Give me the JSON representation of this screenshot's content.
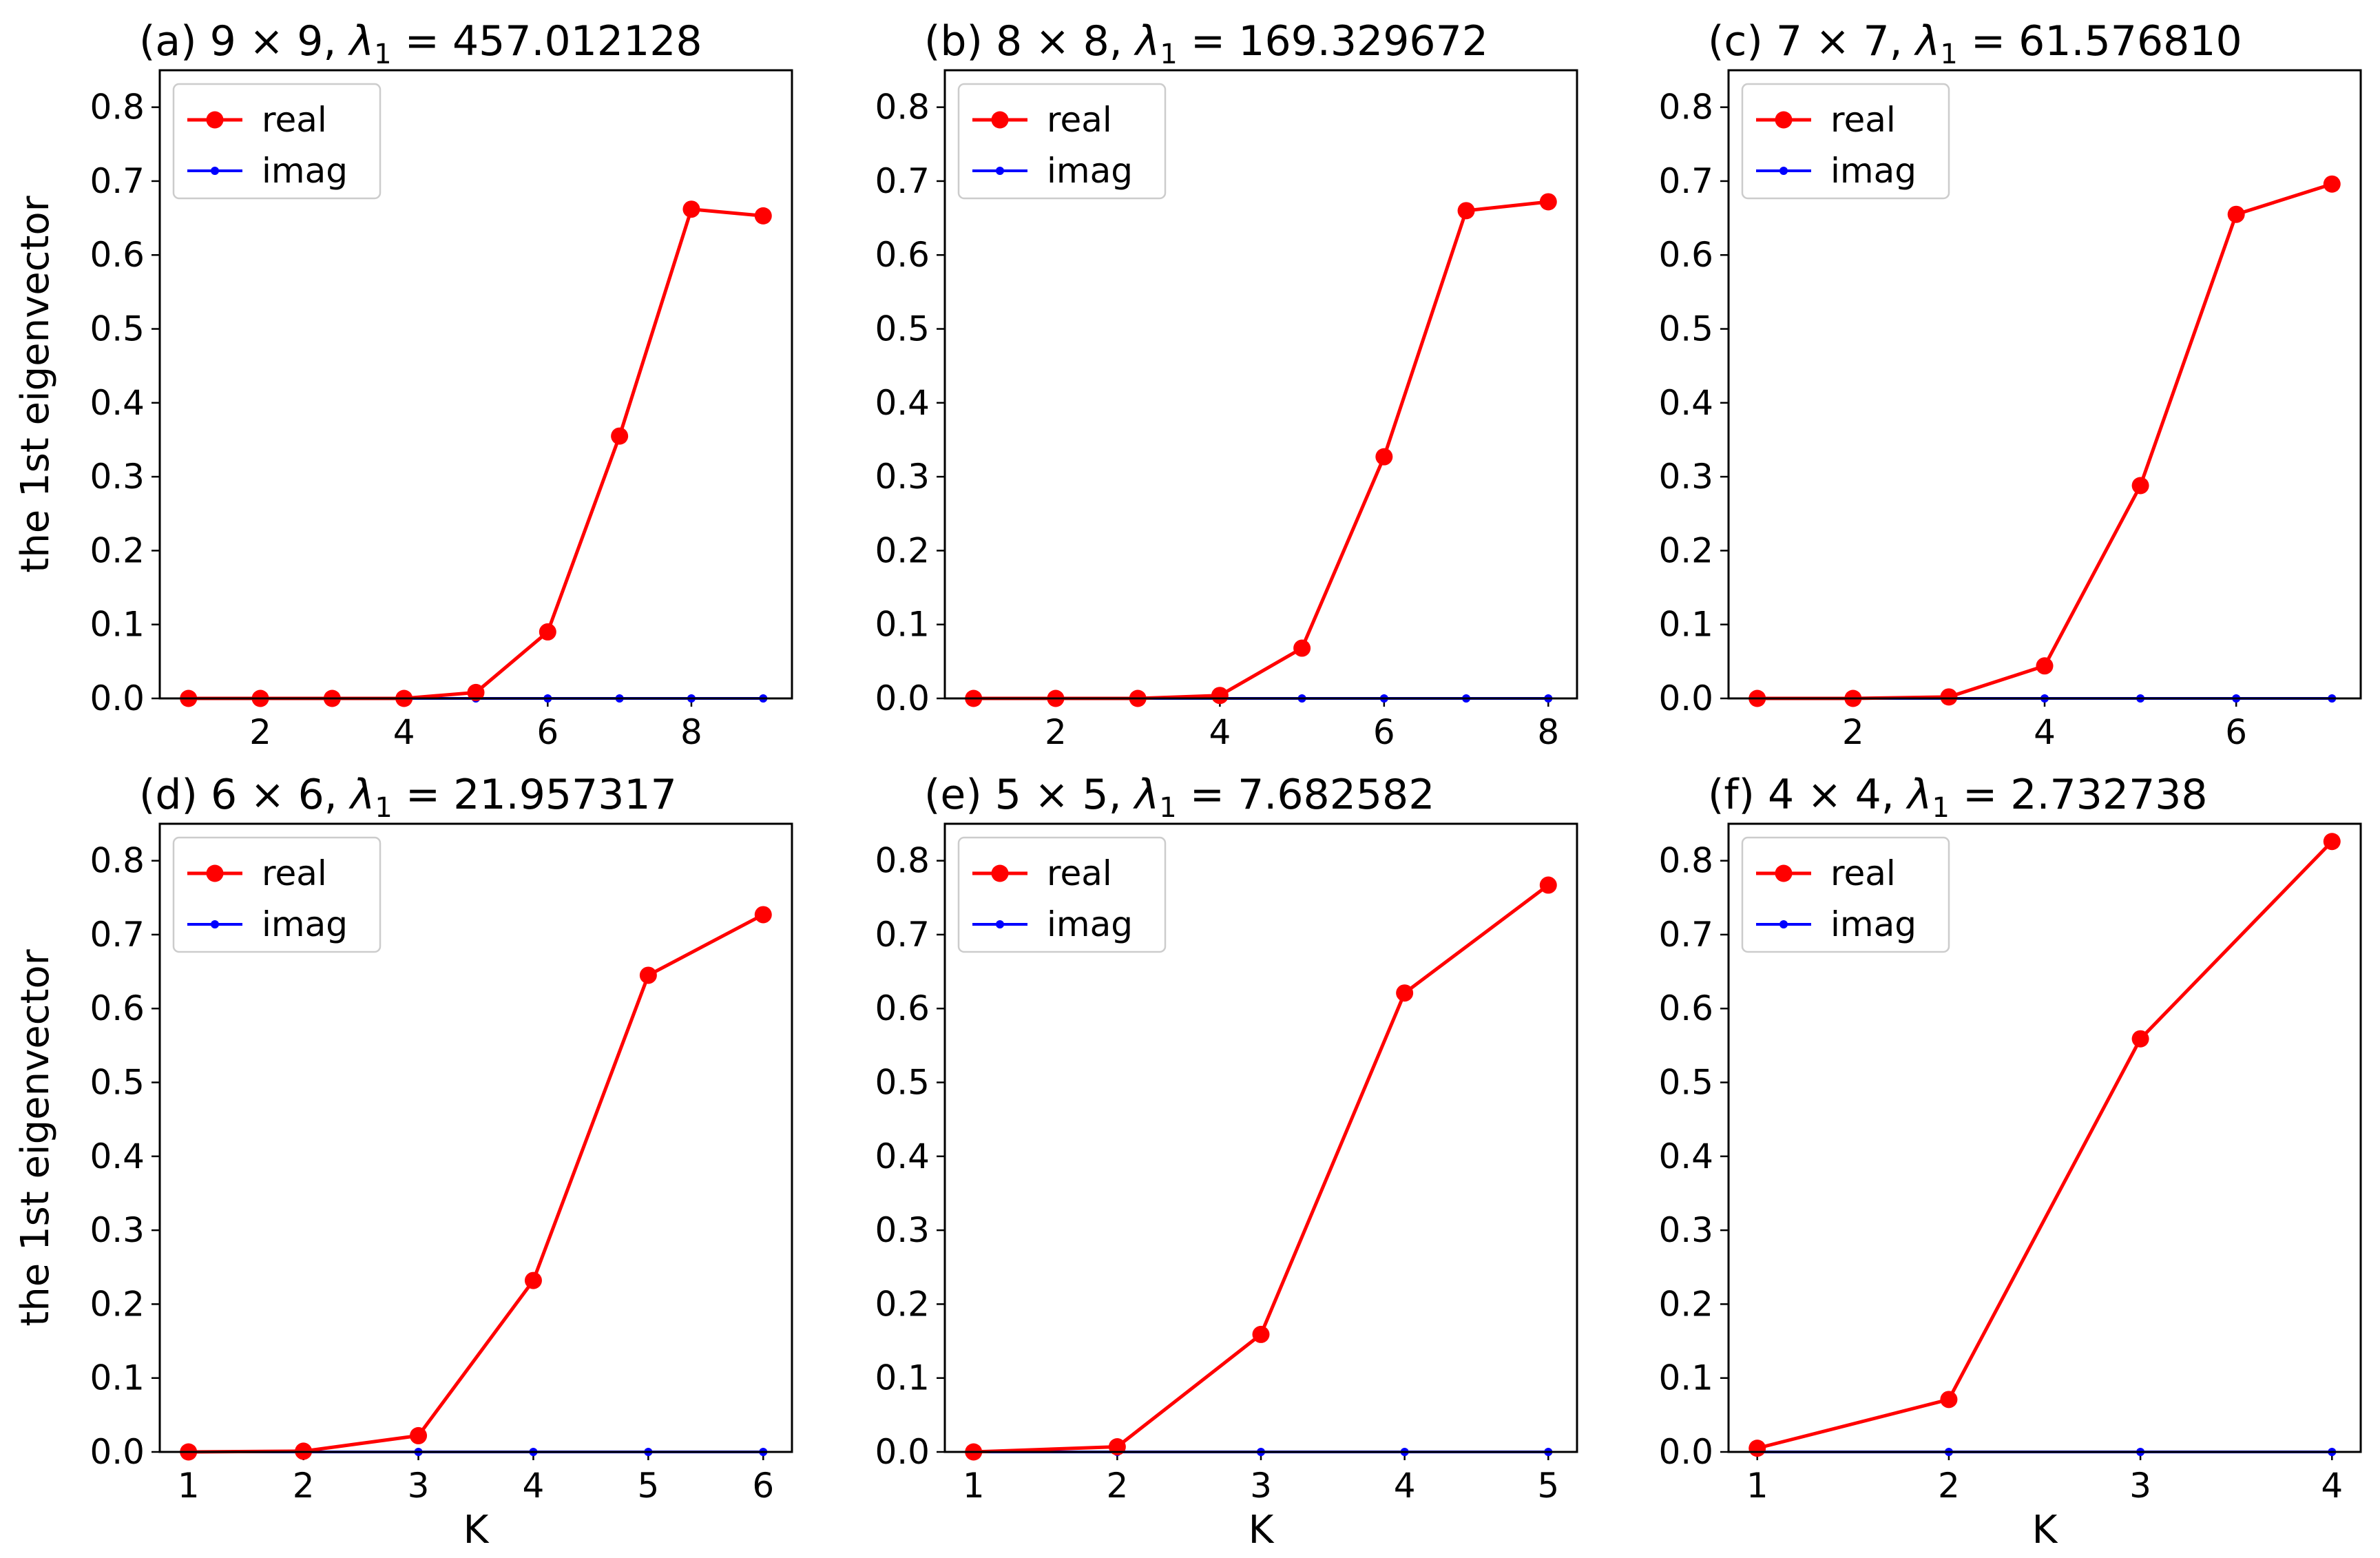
{
  "figure": {
    "ylabel": "the 1st eigenvector",
    "xlabel": "K"
  },
  "legend": {
    "entries": [
      {
        "label": "real",
        "color": "#ff0000",
        "marker": "large-dot"
      },
      {
        "label": "imag",
        "color": "#0000ff",
        "marker": "small-dot"
      }
    ],
    "placement": "upper-left"
  },
  "chart_data": [
    {
      "type": "line",
      "title_prefix": "(a) 9 × 9, ",
      "title_lambda": "λ",
      "title_sub": "1",
      "title_value": " = 457.012128",
      "x": [
        1,
        2,
        3,
        4,
        5,
        6,
        7,
        8,
        9
      ],
      "xticks": [
        2,
        4,
        6,
        8
      ],
      "xlim": [
        0.6,
        9.4
      ],
      "ylim": [
        0,
        0.85
      ],
      "yticks": [
        0.0,
        0.1,
        0.2,
        0.3,
        0.4,
        0.5,
        0.6,
        0.7,
        0.8
      ],
      "series": [
        {
          "name": "real",
          "values": [
            0.0,
            0.0,
            0.0,
            0.0,
            0.008,
            0.09,
            0.355,
            0.662,
            0.653
          ]
        },
        {
          "name": "imag",
          "values": [
            0,
            0,
            0,
            0,
            0,
            0,
            0,
            0,
            0
          ]
        }
      ],
      "show_ylabel": true,
      "show_xlabel": false
    },
    {
      "type": "line",
      "title_prefix": "(b) 8 × 8, ",
      "title_lambda": "λ",
      "title_sub": "1",
      "title_value": " = 169.329672",
      "x": [
        1,
        2,
        3,
        4,
        5,
        6,
        7,
        8
      ],
      "xticks": [
        2,
        4,
        6,
        8
      ],
      "xlim": [
        0.65,
        8.35
      ],
      "ylim": [
        0,
        0.85
      ],
      "yticks": [
        0.0,
        0.1,
        0.2,
        0.3,
        0.4,
        0.5,
        0.6,
        0.7,
        0.8
      ],
      "series": [
        {
          "name": "real",
          "values": [
            0.0,
            0.0,
            0.0,
            0.004,
            0.068,
            0.327,
            0.66,
            0.672
          ]
        },
        {
          "name": "imag",
          "values": [
            0,
            0,
            0,
            0,
            0,
            0,
            0,
            0
          ]
        }
      ],
      "show_ylabel": false,
      "show_xlabel": false
    },
    {
      "type": "line",
      "title_prefix": "(c) 7 × 7, ",
      "title_lambda": "λ",
      "title_sub": "1",
      "title_value": " = 61.576810",
      "x": [
        1,
        2,
        3,
        4,
        5,
        6,
        7
      ],
      "xticks": [
        2,
        4,
        6
      ],
      "xlim": [
        0.7,
        7.3
      ],
      "ylim": [
        0,
        0.85
      ],
      "yticks": [
        0.0,
        0.1,
        0.2,
        0.3,
        0.4,
        0.5,
        0.6,
        0.7,
        0.8
      ],
      "series": [
        {
          "name": "real",
          "values": [
            0.0,
            0.0,
            0.002,
            0.044,
            0.288,
            0.655,
            0.696
          ]
        },
        {
          "name": "imag",
          "values": [
            0,
            0,
            0,
            0,
            0,
            0,
            0
          ]
        }
      ],
      "show_ylabel": false,
      "show_xlabel": false
    },
    {
      "type": "line",
      "title_prefix": "(d) 6 × 6, ",
      "title_lambda": "λ",
      "title_sub": "1",
      "title_value": " = 21.957317",
      "x": [
        1,
        2,
        3,
        4,
        5,
        6
      ],
      "xticks": [
        1,
        2,
        3,
        4,
        5,
        6
      ],
      "xlim": [
        0.75,
        6.25
      ],
      "ylim": [
        0,
        0.85
      ],
      "yticks": [
        0.0,
        0.1,
        0.2,
        0.3,
        0.4,
        0.5,
        0.6,
        0.7,
        0.8
      ],
      "series": [
        {
          "name": "real",
          "values": [
            0.0,
            0.001,
            0.022,
            0.232,
            0.645,
            0.727
          ]
        },
        {
          "name": "imag",
          "values": [
            0,
            0,
            0,
            0,
            0,
            0
          ]
        }
      ],
      "show_ylabel": true,
      "show_xlabel": true
    },
    {
      "type": "line",
      "title_prefix": "(e) 5 × 5, ",
      "title_lambda": "λ",
      "title_sub": "1",
      "title_value": " = 7.682582",
      "x": [
        1,
        2,
        3,
        4,
        5
      ],
      "xticks": [
        1,
        2,
        3,
        4,
        5
      ],
      "xlim": [
        0.8,
        5.2
      ],
      "ylim": [
        0,
        0.85
      ],
      "yticks": [
        0.0,
        0.1,
        0.2,
        0.3,
        0.4,
        0.5,
        0.6,
        0.7,
        0.8
      ],
      "series": [
        {
          "name": "real",
          "values": [
            0.0,
            0.007,
            0.159,
            0.621,
            0.767
          ]
        },
        {
          "name": "imag",
          "values": [
            0,
            0,
            0,
            0,
            0
          ]
        }
      ],
      "show_ylabel": false,
      "show_xlabel": true
    },
    {
      "type": "line",
      "title_prefix": "(f) 4 × 4, ",
      "title_lambda": "λ",
      "title_sub": "1",
      "title_value": " = 2.732738",
      "x": [
        1,
        2,
        3,
        4
      ],
      "xticks": [
        1,
        2,
        3,
        4
      ],
      "xlim": [
        0.85,
        4.15
      ],
      "ylim": [
        0,
        0.85
      ],
      "yticks": [
        0.0,
        0.1,
        0.2,
        0.3,
        0.4,
        0.5,
        0.6,
        0.7,
        0.8
      ],
      "series": [
        {
          "name": "real",
          "values": [
            0.005,
            0.071,
            0.559,
            0.826
          ]
        },
        {
          "name": "imag",
          "values": [
            0,
            0,
            0,
            0
          ]
        }
      ],
      "show_ylabel": false,
      "show_xlabel": true
    }
  ]
}
